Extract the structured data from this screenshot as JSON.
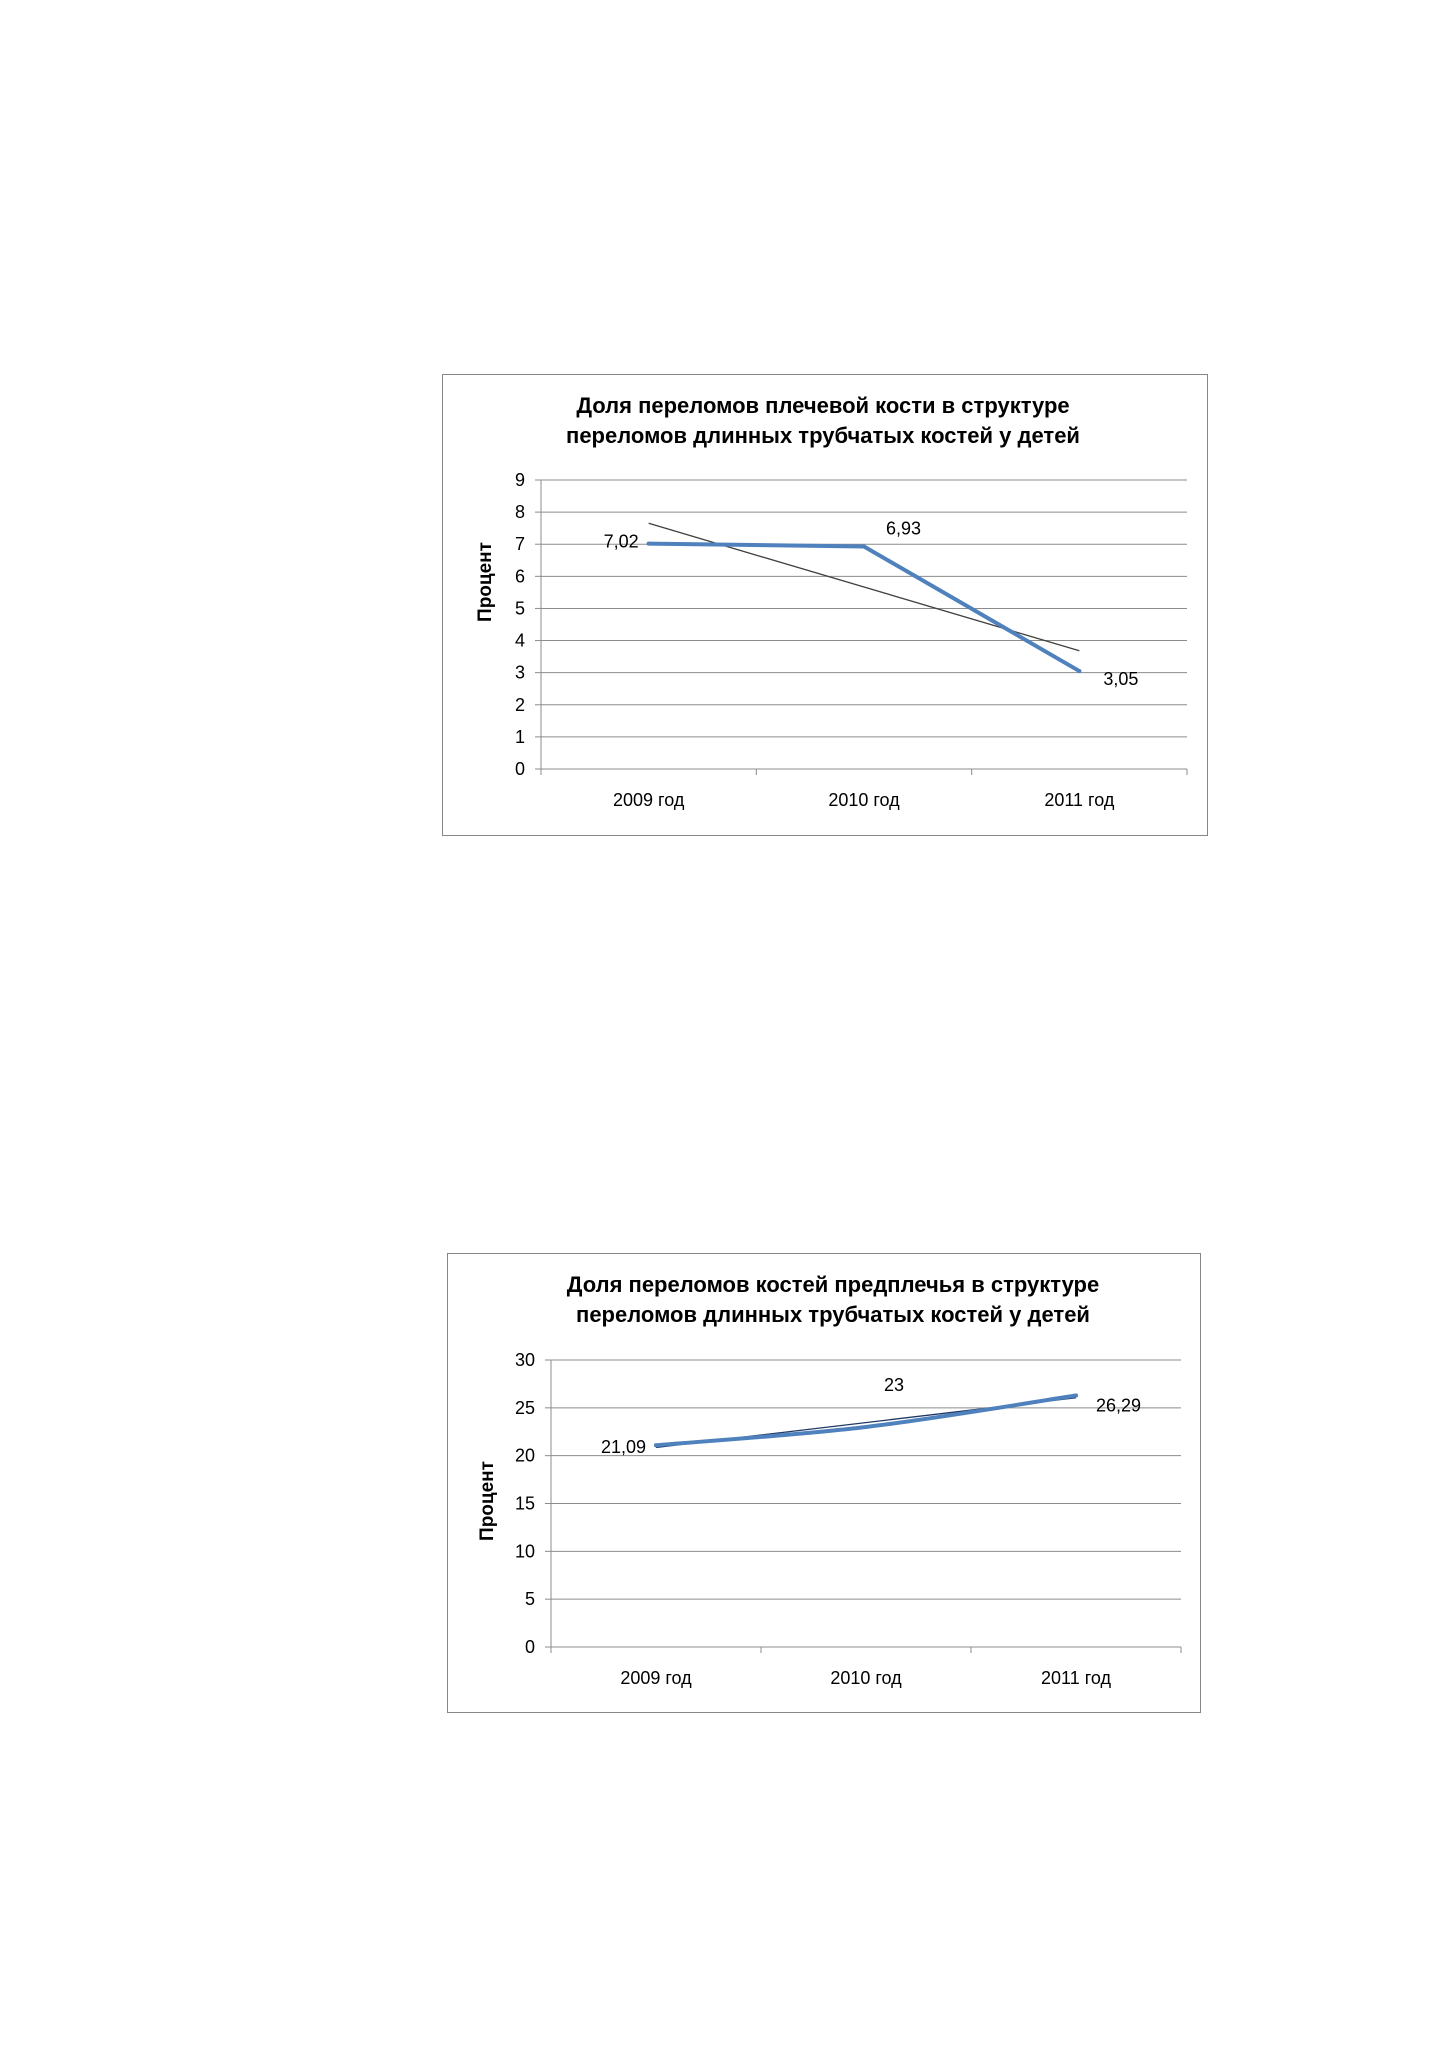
{
  "chart_data": [
    {
      "type": "line",
      "title": "Доля переломов плечевой кости в структуре переломов длинных трубчатых костей у детей",
      "title_lines": [
        "Доля переломов плечевой кости в структуре",
        "переломов длинных трубчатых костей у детей"
      ],
      "xlabel": "",
      "ylabel": "Процент",
      "categories": [
        "2009 год",
        "2010 год",
        "2011 год"
      ],
      "series": [
        {
          "values": [
            7.02,
            6.93,
            3.05
          ],
          "data_labels": [
            "7,02",
            "6,93",
            "3,05"
          ],
          "color": "#4f81bd",
          "smooth": false
        }
      ],
      "trendline": {
        "type": "linear",
        "color": "#404040"
      },
      "ylim": [
        0,
        9
      ],
      "yticks": [
        0,
        1,
        2,
        3,
        4,
        5,
        6,
        7,
        8,
        9
      ],
      "grid": true,
      "legend": "none"
    },
    {
      "type": "line",
      "title": "Доля переломов костей предплечья в структуре переломов длинных трубчатых костей у детей",
      "title_lines": [
        "Доля переломов костей предплечья в структуре",
        "переломов длинных трубчатых костей у детей"
      ],
      "xlabel": "",
      "ylabel": "Процент",
      "categories": [
        "2009 год",
        "2010 год",
        "2011 год"
      ],
      "series": [
        {
          "values": [
            21.09,
            23,
            26.29
          ],
          "data_labels": [
            "21,09",
            "23",
            "26,29"
          ],
          "color": "#4f81bd",
          "smooth": true
        }
      ],
      "trendline": {
        "type": "linear",
        "color": "#1f3864"
      },
      "ylim": [
        0,
        30
      ],
      "yticks": [
        0,
        5,
        10,
        15,
        20,
        25,
        30
      ],
      "grid": true,
      "legend": "none"
    }
  ]
}
